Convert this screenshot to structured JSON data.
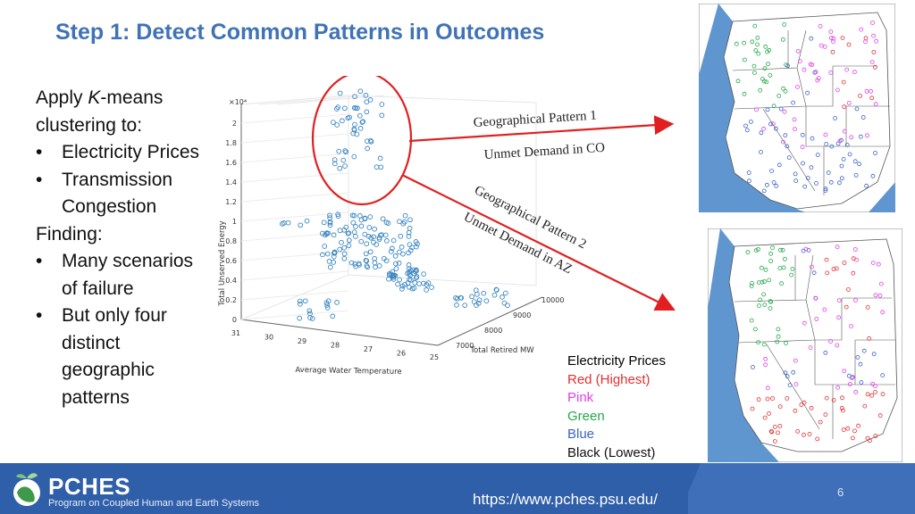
{
  "title": "Step 1: Detect Common Patterns in Outcomes",
  "text": {
    "intro_pre": "Apply ",
    "intro_k": "K",
    "intro_post": "-means",
    "intro2": "clustering to:",
    "b1": "Electricity Prices",
    "b2a": "Transmission",
    "b2b": "Congestion",
    "finding": "Finding:",
    "b3a": "Many scenarios",
    "b3b": "of failure",
    "b4a": "But only four",
    "b4b": "distinct",
    "b4c": "geographic",
    "b4d": "patterns",
    "bullet": "•"
  },
  "plot": {
    "exponent": "×10⁴",
    "zticks": [
      "0",
      "0.2",
      "0.4",
      "0.6",
      "0.8",
      "1",
      "1.2",
      "1.4",
      "1.6",
      "1.8",
      "2"
    ],
    "xticks": [
      "31",
      "30",
      "29",
      "28",
      "27",
      "26",
      "25"
    ],
    "yticks": [
      "7000",
      "8000",
      "9000",
      "10000"
    ],
    "zlabel": "Total Unserved Energy",
    "xlabel": "Average Water Temperature",
    "ylabel": "Total Retired MW",
    "point_color": "#3a86c3"
  },
  "annotations": {
    "gp1": "Geographical Pattern 1",
    "co": "Unmet Demand in CO",
    "gp2": "Geographical Pattern 2",
    "az": "Unmet Demand in AZ",
    "arrow_color": "#e02020"
  },
  "legend": {
    "title": "Electricity Prices",
    "items": [
      {
        "label": "Red (Highest)",
        "color": "#e23030"
      },
      {
        "label": "Pink",
        "color": "#e040e8"
      },
      {
        "label": "Green",
        "color": "#22a84a"
      },
      {
        "label": "Blue",
        "color": "#3a62c8"
      },
      {
        "label": "Black (Lowest)",
        "color": "#111111"
      }
    ]
  },
  "footer": {
    "brand": "PCHES",
    "subtitle": "Program on Coupled Human and Earth Systems",
    "url": "https://www.pches.psu.edu/",
    "page": "6"
  }
}
